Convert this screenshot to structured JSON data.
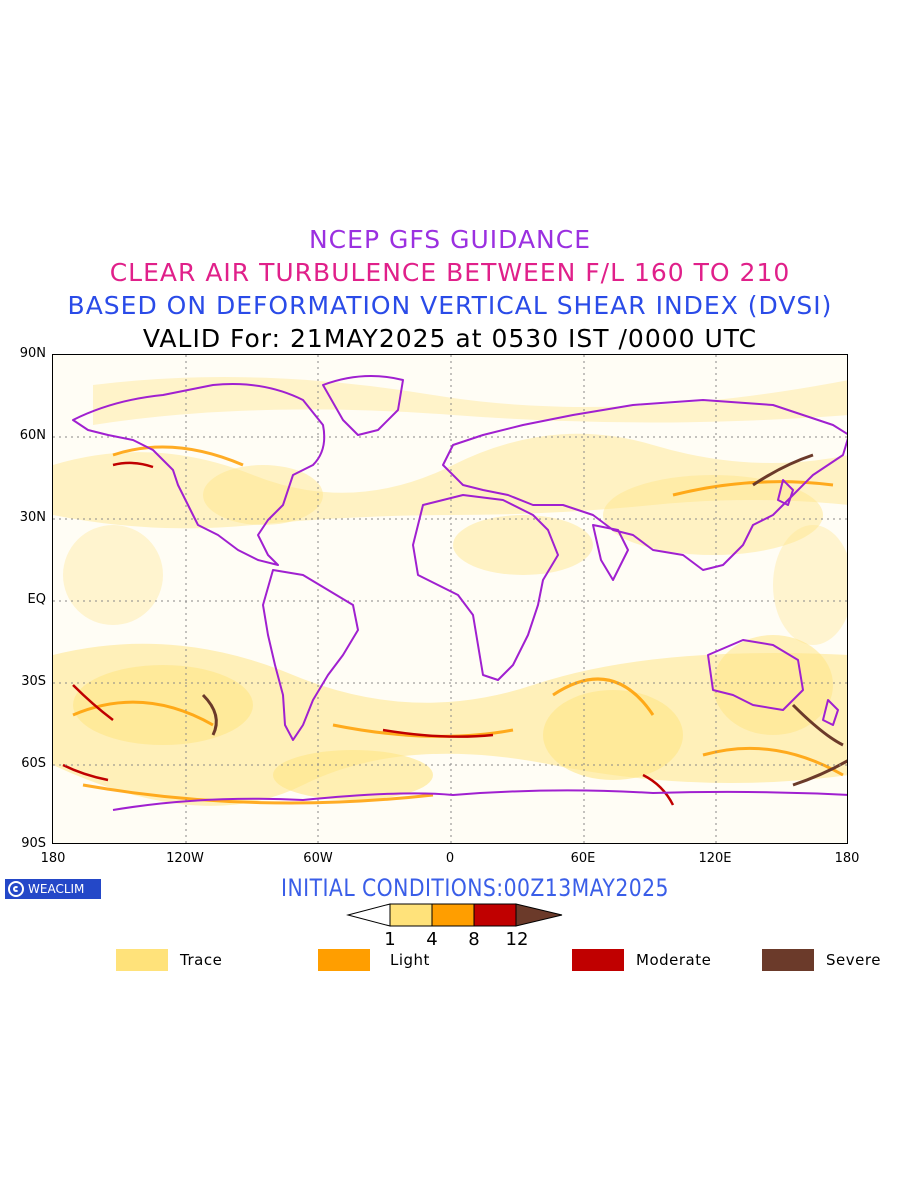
{
  "titles": {
    "line1": "NCEP GFS GUIDANCE",
    "line2": "CLEAR AIR TURBULENCE BETWEEN F/L 160 TO 210",
    "line3": "BASED ON DEFORMATION VERTICAL SHEAR INDEX (DVSI)",
    "line4": "VALID For: 21MAY2025 at 0530 IST /0000 UTC"
  },
  "y_axis": [
    "90N",
    "60N",
    "30N",
    "EQ",
    "30S",
    "60S",
    "90S"
  ],
  "x_axis": [
    "180",
    "120W",
    "60W",
    "0",
    "60E",
    "120E",
    "180"
  ],
  "brand": "WEACLIM",
  "initial_conditions": "INITIAL CONDITIONS:00Z13MAY2025",
  "colorbar": {
    "ticks": [
      "1",
      "4",
      "8",
      "12"
    ],
    "colors": [
      "#ffffff",
      "#ffe27a",
      "#ff9e00",
      "#c00000",
      "#6b3a2a"
    ]
  },
  "legend": [
    {
      "label": "Trace",
      "color": "#ffe27a"
    },
    {
      "label": "Light",
      "color": "#ff9e00"
    },
    {
      "label": "Moderate",
      "color": "#c00000"
    },
    {
      "label": "Severe",
      "color": "#6b3a2a"
    }
  ],
  "map_colors": {
    "coastline": "#a020d0",
    "grid": "#888888"
  }
}
